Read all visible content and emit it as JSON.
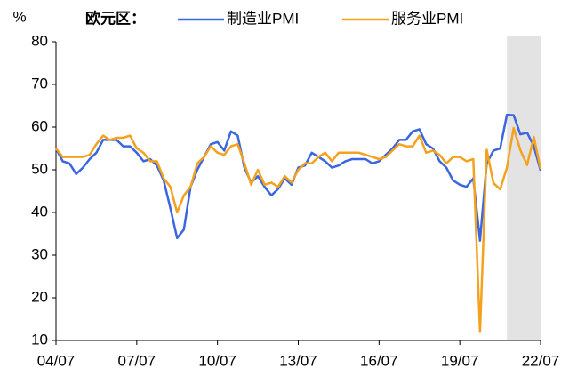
{
  "chart_data": {
    "type": "line",
    "legend_title": "欧元区：",
    "y_label": "%",
    "x": [
      "04/07",
      "04/10",
      "05/01",
      "05/04",
      "05/07",
      "05/10",
      "06/01",
      "06/04",
      "06/07",
      "06/10",
      "07/01",
      "07/04",
      "07/07",
      "07/10",
      "08/01",
      "08/04",
      "08/07",
      "08/10",
      "09/01",
      "09/04",
      "09/07",
      "09/10",
      "10/01",
      "10/04",
      "10/07",
      "10/10",
      "11/01",
      "11/04",
      "11/07",
      "11/10",
      "12/01",
      "12/04",
      "12/07",
      "12/10",
      "13/01",
      "13/04",
      "13/07",
      "13/10",
      "14/01",
      "14/04",
      "14/07",
      "14/10",
      "15/01",
      "15/04",
      "15/07",
      "15/10",
      "16/01",
      "16/04",
      "16/07",
      "16/10",
      "17/01",
      "17/04",
      "17/07",
      "17/10",
      "18/01",
      "18/04",
      "18/07",
      "18/10",
      "19/01",
      "19/04",
      "19/07",
      "19/10",
      "20/01",
      "20/04",
      "20/07",
      "20/10",
      "21/01",
      "21/04",
      "21/07",
      "21/10",
      "22/01",
      "22/04",
      "22/07"
    ],
    "series": [
      {
        "name": "制造业PMI",
        "color": "#3a66e0",
        "values": [
          55,
          52,
          51.5,
          49,
          50.5,
          52.5,
          54,
          57,
          57,
          57,
          55.5,
          55.5,
          54,
          52,
          52.5,
          51,
          47.5,
          41,
          34,
          36,
          46,
          50,
          53,
          56,
          56.5,
          54.5,
          59,
          58,
          50.5,
          47,
          48.5,
          46,
          44,
          45.5,
          48,
          46.5,
          50.5,
          51,
          54,
          53,
          52,
          50.5,
          51,
          52,
          52.5,
          52.5,
          52.5,
          51.5,
          52,
          53.5,
          55,
          57,
          57,
          59,
          59.5,
          56,
          55,
          52,
          50.5,
          47.5,
          46.5,
          46,
          48,
          33.4,
          51.5,
          54.5,
          55,
          62.9,
          62.8,
          58.3,
          58.7,
          55.5,
          49.8
        ]
      },
      {
        "name": "服务业PMI",
        "color": "#f4a21e",
        "values": [
          55,
          53,
          53,
          53,
          53,
          53.5,
          56,
          58,
          57,
          57.5,
          57.5,
          58,
          55,
          54,
          52,
          52,
          48,
          46,
          40,
          44,
          46,
          51.5,
          53,
          55.5,
          54,
          53.5,
          55.5,
          56,
          51.5,
          46.5,
          50,
          46.5,
          47,
          46,
          48.5,
          47,
          50,
          51.5,
          51.5,
          53,
          54,
          52,
          54,
          54,
          54,
          54,
          53.5,
          53,
          52.5,
          53,
          54.5,
          56,
          55.5,
          55.5,
          58,
          54,
          54.5,
          53.5,
          51.5,
          53,
          53,
          52,
          52.5,
          12,
          54.7,
          46.9,
          45.4,
          50.5,
          59.8,
          54.6,
          51.1,
          57.7,
          50.2
        ]
      }
    ],
    "xticks": [
      "04/07",
      "07/07",
      "10/07",
      "13/07",
      "16/07",
      "19/07",
      "22/07"
    ],
    "ylim": [
      10,
      80
    ],
    "yticks": [
      10,
      20,
      30,
      40,
      50,
      60,
      70,
      80
    ],
    "shade": {
      "from": "21/04",
      "to": "22/07",
      "color": "#e3e3e3"
    },
    "grid": false
  }
}
